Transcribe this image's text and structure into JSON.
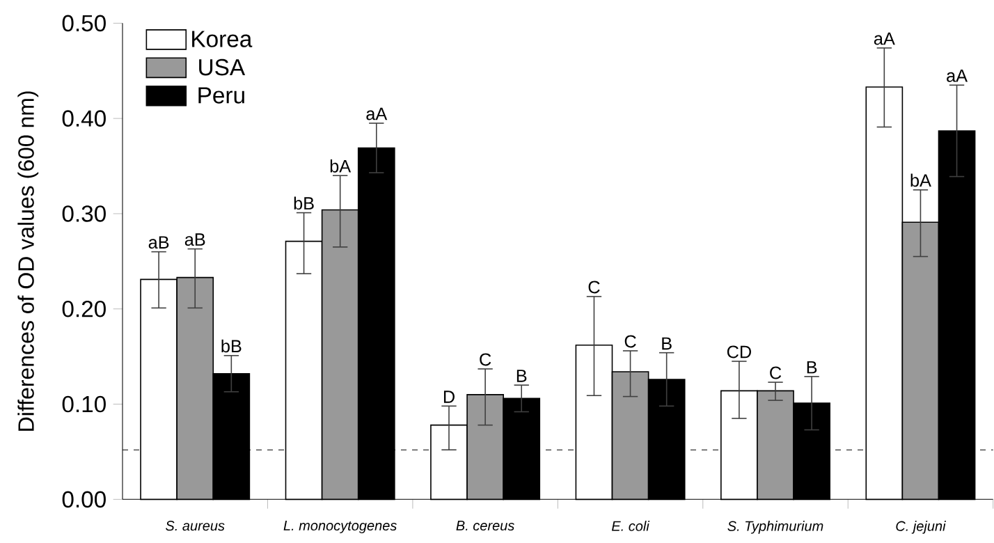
{
  "chart_data": {
    "type": "bar",
    "ylabel": "Differences of OD values (600 nm)",
    "categories": [
      "S. aureus",
      "L. monocytogenes",
      "B. cereus",
      "E. coli",
      "S. Typhimurium",
      "C. jejuni"
    ],
    "series": [
      {
        "name": "Korea",
        "color": "#ffffff",
        "values": [
          0.231,
          0.271,
          0.078,
          0.162,
          0.114,
          0.433
        ],
        "errors": [
          [
            0.201,
            0.26
          ],
          [
            0.237,
            0.301
          ],
          [
            0.052,
            0.098
          ],
          [
            0.109,
            0.213
          ],
          [
            0.085,
            0.145
          ],
          [
            0.391,
            0.474
          ]
        ],
        "value_labels": [
          "aB",
          "bB",
          "D",
          "C",
          "CD",
          "aA"
        ]
      },
      {
        "name": "USA",
        "color": "#999999",
        "values": [
          0.233,
          0.304,
          0.11,
          0.134,
          0.114,
          0.291
        ],
        "errors": [
          [
            0.201,
            0.263
          ],
          [
            0.265,
            0.34
          ],
          [
            0.078,
            0.137
          ],
          [
            0.108,
            0.156
          ],
          [
            0.104,
            0.123
          ],
          [
            0.255,
            0.325
          ]
        ],
        "value_labels": [
          "aB",
          "bA",
          "C",
          "C",
          "C",
          "bA"
        ]
      },
      {
        "name": "Peru",
        "color": "#000000",
        "values": [
          0.132,
          0.369,
          0.106,
          0.126,
          0.101,
          0.387
        ],
        "errors": [
          0.019,
          0.026,
          0.014,
          0.028,
          0.028,
          0.048
        ],
        "value_labels": [
          "bB",
          "aA",
          "B",
          "B",
          "B",
          "aA"
        ]
      }
    ],
    "ylim": [
      0,
      0.5
    ],
    "yticks": [
      {
        "value": 0,
        "label": "0.00"
      },
      {
        "value": 0.1,
        "label": "0.10"
      },
      {
        "value": 0.2,
        "label": "0.20"
      },
      {
        "value": 0.3,
        "label": "0.30"
      },
      {
        "value": 0.4,
        "label": "0.40"
      },
      {
        "value": 0.5,
        "label": "0.50"
      }
    ],
    "ref_lines": [
      {
        "axis": "y",
        "value": 0.052,
        "line_style": "dashed",
        "color": "#000000"
      }
    ],
    "legend": "top left",
    "grid": false
  }
}
